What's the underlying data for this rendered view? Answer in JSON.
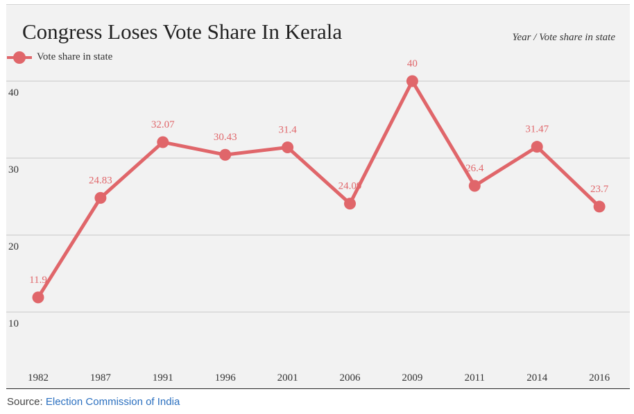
{
  "chart_data": {
    "type": "line",
    "title": "Congress Loses Vote Share In Kerala",
    "subtitle": "Year / Vote share in state",
    "categories": [
      "1982",
      "1987",
      "1991",
      "1996",
      "2001",
      "2006",
      "2009",
      "2011",
      "2014",
      "2016"
    ],
    "series": [
      {
        "name": "Vote share in state",
        "values": [
          11.9,
          24.83,
          32.07,
          30.43,
          31.4,
          24.09,
          40,
          26.4,
          31.47,
          23.7
        ],
        "labels": [
          "11.9",
          "24.83",
          "32.07",
          "30.43",
          "31.4",
          "24.09",
          "40",
          "26.4",
          "31.47",
          "23.7"
        ],
        "color": "#e0666a"
      }
    ],
    "yticks": [
      "10",
      "20",
      "30",
      "40"
    ],
    "ylim": [
      0,
      40
    ],
    "xlabel": "",
    "ylabel": "",
    "grid": true,
    "legend_position": "top-left"
  },
  "legend": {
    "label": "Vote share in state"
  },
  "source": {
    "prefix": "Source: ",
    "link_text": "Election Commission of India"
  },
  "colors": {
    "series": "#e0666a",
    "background": "#f2f2f2",
    "grid": "#c8c8c8",
    "link": "#2a6fbf"
  }
}
